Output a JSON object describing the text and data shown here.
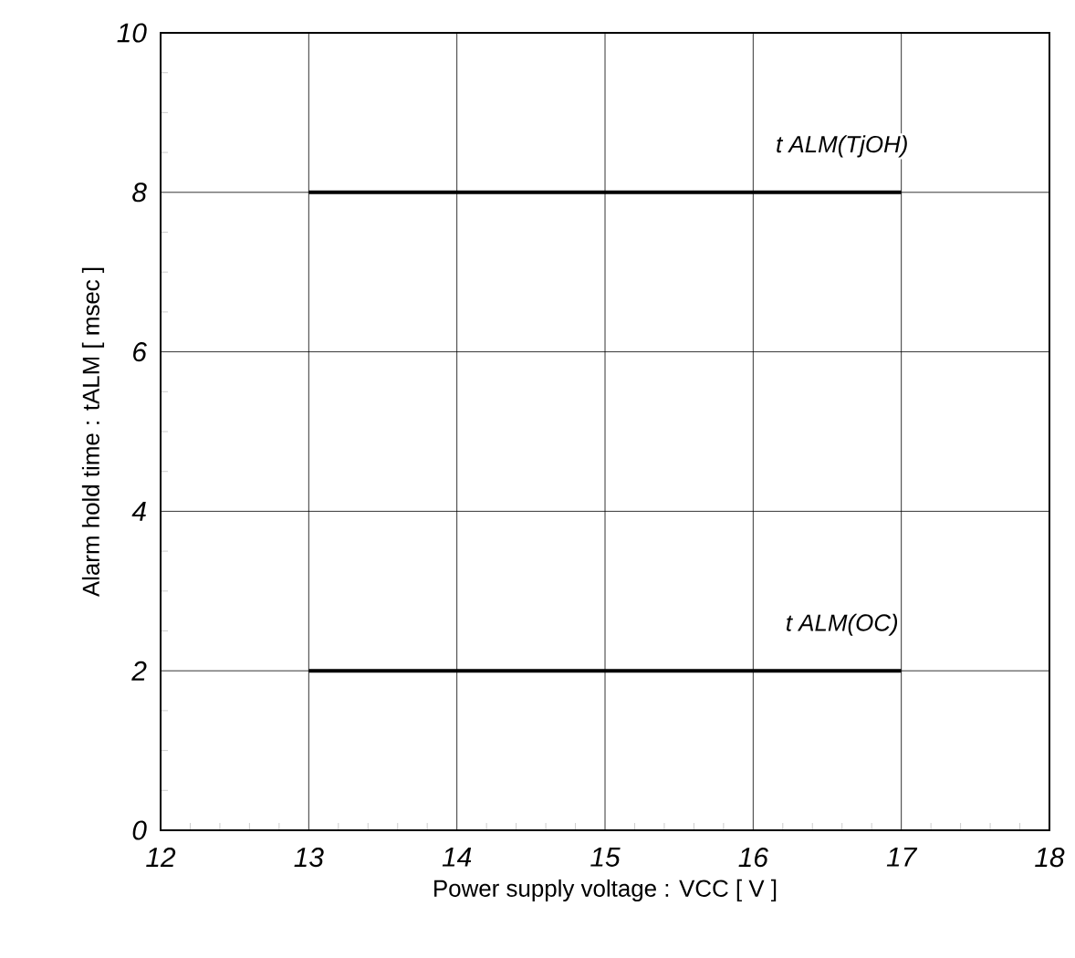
{
  "chart_data": {
    "type": "line",
    "xlabel": "Power supply voltage : VCC [ V ]",
    "ylabel": "Alarm hold time : tALM [ msec ]",
    "x": [
      13,
      17
    ],
    "series": [
      {
        "name": "t ALM(TjOH)",
        "color": "#000000",
        "values": [
          8,
          8
        ]
      },
      {
        "name": "t ALM(OC)",
        "color": "#000000",
        "values": [
          2,
          2
        ]
      }
    ],
    "xlim": [
      12,
      18
    ],
    "ylim": [
      0,
      10
    ],
    "xticks": [
      12,
      13,
      14,
      15,
      16,
      17,
      18
    ],
    "yticks": [
      0,
      2,
      4,
      6,
      8,
      10
    ],
    "grid": true,
    "marker": "none",
    "line_style": "solid",
    "legend": false
  }
}
